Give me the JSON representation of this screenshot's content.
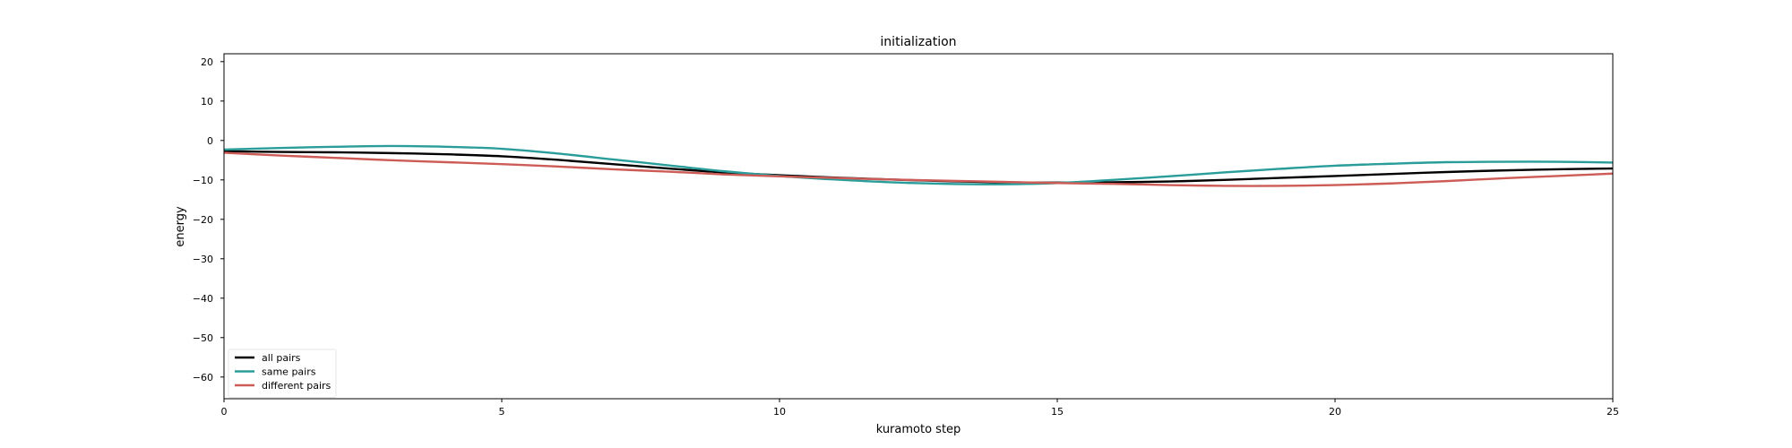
{
  "chart_data": {
    "type": "line",
    "title": "initialization",
    "xlabel": "kuramoto step",
    "ylabel": "energy",
    "xlim": [
      0,
      25
    ],
    "ylim": [
      -65.5,
      22
    ],
    "xticks": [
      0,
      5,
      10,
      15,
      20,
      25
    ],
    "yticks": [
      20,
      10,
      0,
      -10,
      -20,
      -30,
      -40,
      -50,
      -60
    ],
    "ytick_labels": [
      "20",
      "10",
      "0",
      "−10",
      "−20",
      "−30",
      "−40",
      "−50",
      "−60"
    ],
    "grid": false,
    "legend_position": "lower-left",
    "x": [
      0,
      1,
      2,
      3,
      4,
      5,
      6,
      7,
      8,
      9,
      10,
      11,
      12,
      13,
      14,
      15,
      16,
      17,
      18,
      19,
      20,
      21,
      22,
      23,
      24,
      25
    ],
    "series": [
      {
        "name": "all pairs",
        "color": "#000000",
        "values": [
          -2.7,
          -2.9,
          -3.0,
          -3.2,
          -3.5,
          -4.0,
          -4.9,
          -6.0,
          -7.1,
          -8.1,
          -8.8,
          -9.4,
          -9.9,
          -10.3,
          -10.6,
          -10.7,
          -10.6,
          -10.4,
          -10.0,
          -9.5,
          -9.0,
          -8.5,
          -8.0,
          -7.6,
          -7.3,
          -7.1
        ]
      },
      {
        "name": "same pairs",
        "color": "#2a9d9a",
        "values": [
          -2.3,
          -1.9,
          -1.6,
          -1.4,
          -1.6,
          -2.1,
          -3.3,
          -4.8,
          -6.3,
          -7.8,
          -9.0,
          -9.9,
          -10.6,
          -11.0,
          -11.1,
          -10.8,
          -10.0,
          -9.1,
          -8.1,
          -7.2,
          -6.4,
          -5.9,
          -5.5,
          -5.4,
          -5.4,
          -5.6
        ]
      },
      {
        "name": "different pairs",
        "color": "#cd5c57",
        "values": [
          -3.1,
          -3.8,
          -4.4,
          -5.0,
          -5.5,
          -6.0,
          -6.6,
          -7.3,
          -7.9,
          -8.6,
          -9.1,
          -9.5,
          -9.9,
          -10.2,
          -10.5,
          -10.8,
          -11.0,
          -11.3,
          -11.5,
          -11.5,
          -11.3,
          -10.9,
          -10.3,
          -9.6,
          -9.0,
          -8.4
        ]
      }
    ]
  }
}
